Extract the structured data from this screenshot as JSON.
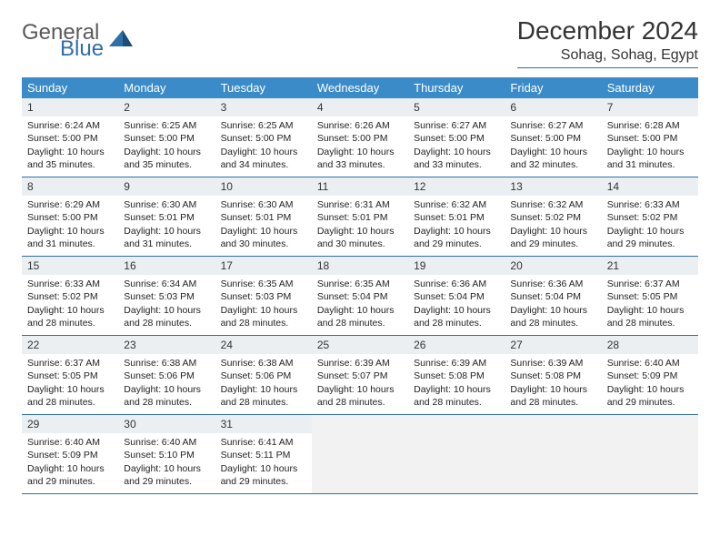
{
  "logo": {
    "text1": "General",
    "text2": "Blue"
  },
  "title": "December 2024",
  "location": "Sohag, Sohag, Egypt",
  "colors": {
    "header_bg": "#3b8bc8",
    "rule": "#2f6fa8",
    "daynum_bg": "#eceff1",
    "empty_bg": "#f2f2f2",
    "text": "#222222",
    "logo_gray": "#5a5a5a",
    "logo_blue": "#2f6fa8"
  },
  "dow": [
    "Sunday",
    "Monday",
    "Tuesday",
    "Wednesday",
    "Thursday",
    "Friday",
    "Saturday"
  ],
  "weeks": [
    [
      {
        "n": "1",
        "sr": "Sunrise: 6:24 AM",
        "ss": "Sunset: 5:00 PM",
        "dl": "Daylight: 10 hours and 35 minutes."
      },
      {
        "n": "2",
        "sr": "Sunrise: 6:25 AM",
        "ss": "Sunset: 5:00 PM",
        "dl": "Daylight: 10 hours and 35 minutes."
      },
      {
        "n": "3",
        "sr": "Sunrise: 6:25 AM",
        "ss": "Sunset: 5:00 PM",
        "dl": "Daylight: 10 hours and 34 minutes."
      },
      {
        "n": "4",
        "sr": "Sunrise: 6:26 AM",
        "ss": "Sunset: 5:00 PM",
        "dl": "Daylight: 10 hours and 33 minutes."
      },
      {
        "n": "5",
        "sr": "Sunrise: 6:27 AM",
        "ss": "Sunset: 5:00 PM",
        "dl": "Daylight: 10 hours and 33 minutes."
      },
      {
        "n": "6",
        "sr": "Sunrise: 6:27 AM",
        "ss": "Sunset: 5:00 PM",
        "dl": "Daylight: 10 hours and 32 minutes."
      },
      {
        "n": "7",
        "sr": "Sunrise: 6:28 AM",
        "ss": "Sunset: 5:00 PM",
        "dl": "Daylight: 10 hours and 31 minutes."
      }
    ],
    [
      {
        "n": "8",
        "sr": "Sunrise: 6:29 AM",
        "ss": "Sunset: 5:00 PM",
        "dl": "Daylight: 10 hours and 31 minutes."
      },
      {
        "n": "9",
        "sr": "Sunrise: 6:30 AM",
        "ss": "Sunset: 5:01 PM",
        "dl": "Daylight: 10 hours and 31 minutes."
      },
      {
        "n": "10",
        "sr": "Sunrise: 6:30 AM",
        "ss": "Sunset: 5:01 PM",
        "dl": "Daylight: 10 hours and 30 minutes."
      },
      {
        "n": "11",
        "sr": "Sunrise: 6:31 AM",
        "ss": "Sunset: 5:01 PM",
        "dl": "Daylight: 10 hours and 30 minutes."
      },
      {
        "n": "12",
        "sr": "Sunrise: 6:32 AM",
        "ss": "Sunset: 5:01 PM",
        "dl": "Daylight: 10 hours and 29 minutes."
      },
      {
        "n": "13",
        "sr": "Sunrise: 6:32 AM",
        "ss": "Sunset: 5:02 PM",
        "dl": "Daylight: 10 hours and 29 minutes."
      },
      {
        "n": "14",
        "sr": "Sunrise: 6:33 AM",
        "ss": "Sunset: 5:02 PM",
        "dl": "Daylight: 10 hours and 29 minutes."
      }
    ],
    [
      {
        "n": "15",
        "sr": "Sunrise: 6:33 AM",
        "ss": "Sunset: 5:02 PM",
        "dl": "Daylight: 10 hours and 28 minutes."
      },
      {
        "n": "16",
        "sr": "Sunrise: 6:34 AM",
        "ss": "Sunset: 5:03 PM",
        "dl": "Daylight: 10 hours and 28 minutes."
      },
      {
        "n": "17",
        "sr": "Sunrise: 6:35 AM",
        "ss": "Sunset: 5:03 PM",
        "dl": "Daylight: 10 hours and 28 minutes."
      },
      {
        "n": "18",
        "sr": "Sunrise: 6:35 AM",
        "ss": "Sunset: 5:04 PM",
        "dl": "Daylight: 10 hours and 28 minutes."
      },
      {
        "n": "19",
        "sr": "Sunrise: 6:36 AM",
        "ss": "Sunset: 5:04 PM",
        "dl": "Daylight: 10 hours and 28 minutes."
      },
      {
        "n": "20",
        "sr": "Sunrise: 6:36 AM",
        "ss": "Sunset: 5:04 PM",
        "dl": "Daylight: 10 hours and 28 minutes."
      },
      {
        "n": "21",
        "sr": "Sunrise: 6:37 AM",
        "ss": "Sunset: 5:05 PM",
        "dl": "Daylight: 10 hours and 28 minutes."
      }
    ],
    [
      {
        "n": "22",
        "sr": "Sunrise: 6:37 AM",
        "ss": "Sunset: 5:05 PM",
        "dl": "Daylight: 10 hours and 28 minutes."
      },
      {
        "n": "23",
        "sr": "Sunrise: 6:38 AM",
        "ss": "Sunset: 5:06 PM",
        "dl": "Daylight: 10 hours and 28 minutes."
      },
      {
        "n": "24",
        "sr": "Sunrise: 6:38 AM",
        "ss": "Sunset: 5:06 PM",
        "dl": "Daylight: 10 hours and 28 minutes."
      },
      {
        "n": "25",
        "sr": "Sunrise: 6:39 AM",
        "ss": "Sunset: 5:07 PM",
        "dl": "Daylight: 10 hours and 28 minutes."
      },
      {
        "n": "26",
        "sr": "Sunrise: 6:39 AM",
        "ss": "Sunset: 5:08 PM",
        "dl": "Daylight: 10 hours and 28 minutes."
      },
      {
        "n": "27",
        "sr": "Sunrise: 6:39 AM",
        "ss": "Sunset: 5:08 PM",
        "dl": "Daylight: 10 hours and 28 minutes."
      },
      {
        "n": "28",
        "sr": "Sunrise: 6:40 AM",
        "ss": "Sunset: 5:09 PM",
        "dl": "Daylight: 10 hours and 29 minutes."
      }
    ],
    [
      {
        "n": "29",
        "sr": "Sunrise: 6:40 AM",
        "ss": "Sunset: 5:09 PM",
        "dl": "Daylight: 10 hours and 29 minutes."
      },
      {
        "n": "30",
        "sr": "Sunrise: 6:40 AM",
        "ss": "Sunset: 5:10 PM",
        "dl": "Daylight: 10 hours and 29 minutes."
      },
      {
        "n": "31",
        "sr": "Sunrise: 6:41 AM",
        "ss": "Sunset: 5:11 PM",
        "dl": "Daylight: 10 hours and 29 minutes."
      },
      null,
      null,
      null,
      null
    ]
  ]
}
